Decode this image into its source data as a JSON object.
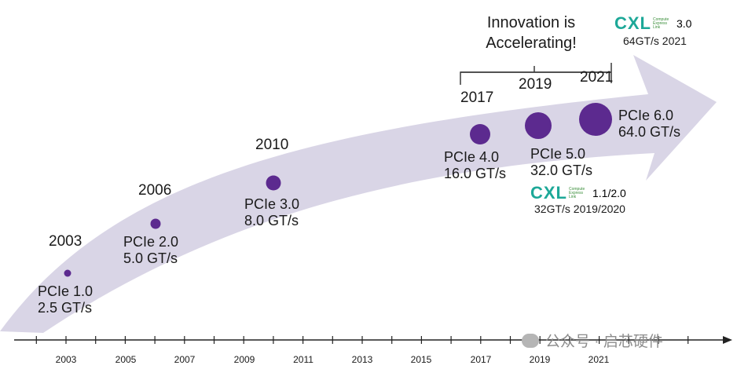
{
  "header": {
    "innovation_line1": "Innovation is",
    "innovation_line2": "Accelerating!"
  },
  "milestones": [
    {
      "year": "2003",
      "name": "PCIe 1.0",
      "speed": "2.5 GT/s"
    },
    {
      "year": "2006",
      "name": "PCIe 2.0",
      "speed": "5.0 GT/s"
    },
    {
      "year": "2010",
      "name": "PCIe 3.0",
      "speed": "8.0 GT/s"
    },
    {
      "year": "2017",
      "name": "PCIe 4.0",
      "speed": "16.0 GT/s"
    },
    {
      "year": "2019",
      "name": "PCIe 5.0",
      "speed": "32.0 GT/s"
    },
    {
      "year": "2021",
      "name": "PCIe 6.0",
      "speed": "64.0 GT/s"
    }
  ],
  "cxl_top": {
    "logo_text": "CXL",
    "logo_sub": "Compute Express Link",
    "version": "3.0",
    "detail": "64GT/s 2021"
  },
  "cxl_bottom": {
    "logo_text": "CXL",
    "logo_sub": "Compute Express Link",
    "version": "1.1/2.0",
    "detail": "32GT/s 2019/2020"
  },
  "axis_labels": [
    "2003",
    "2005",
    "2007",
    "2009",
    "2011",
    "2013",
    "2015",
    "2017",
    "2019",
    "2021"
  ],
  "watermark": "公众号 · 启芯硬件",
  "colors": {
    "arrow": "#d9d5e6",
    "dot": "#5c2a8f",
    "text": "#1a1a1a",
    "cxl_teal": "#1da898",
    "cxl_green": "#3b8f3b"
  }
}
